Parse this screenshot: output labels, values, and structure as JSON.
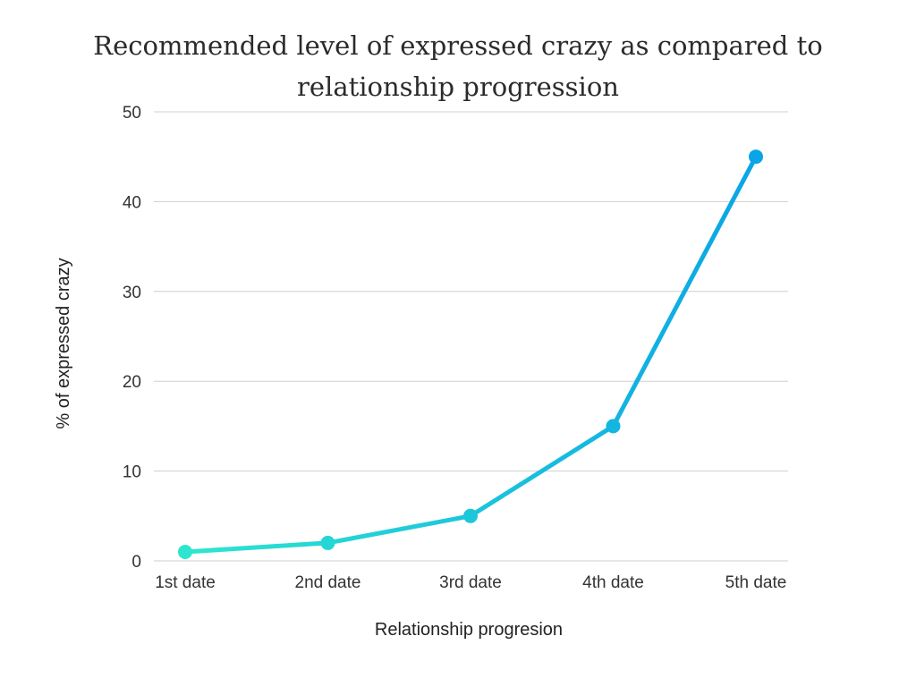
{
  "chart_data": {
    "type": "line",
    "title": "Recommended level of expressed crazy as compared to relationship progression",
    "xlabel": "Relationship progresion",
    "ylabel": "% of expressed crazy",
    "categories": [
      "1st date",
      "2nd date",
      "3rd date",
      "4th date",
      "5th date"
    ],
    "series": [
      {
        "values": [
          1,
          2,
          5,
          15,
          45
        ]
      }
    ],
    "ylim": [
      0,
      50
    ],
    "yticks": [
      0,
      10,
      20,
      30,
      40,
      50
    ],
    "grid": true,
    "legend": "none",
    "colors": {
      "gradient_start": "#2ee6d0",
      "gradient_end": "#0aa5e6",
      "grid": "#cfcfcf"
    }
  }
}
